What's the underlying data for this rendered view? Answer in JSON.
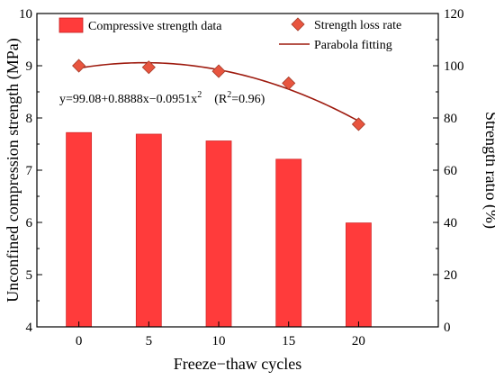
{
  "chart_data": {
    "type": "bar",
    "x": [
      0,
      5,
      10,
      15,
      20
    ],
    "xlabel": "Freeze−thaw cycles",
    "ylabel_left": "Unconfined compression strength (MPa)",
    "ylabel_right": "Strength ratio (%)",
    "ylim_left": [
      4,
      10
    ],
    "ylim_right": [
      0,
      120
    ],
    "x_ticks": [
      "0",
      "5",
      "10",
      "15",
      "20"
    ],
    "y_ticks_left": [
      "4",
      "5",
      "6",
      "7",
      "8",
      "9",
      "10"
    ],
    "y_ticks_right": [
      "0",
      "20",
      "40",
      "60",
      "80",
      "100",
      "120"
    ],
    "grid": false,
    "legend_position": "top",
    "series": [
      {
        "name": "Compressive strength data",
        "type": "bar",
        "axis": "left",
        "color": "#ff3b3b",
        "values": [
          7.72,
          7.69,
          7.56,
          7.21,
          5.99
        ]
      },
      {
        "name": "Strength loss rate",
        "type": "scatter",
        "axis": "right",
        "color": "#e8553f",
        "values": [
          100,
          99.4,
          97.9,
          93.3,
          77.6
        ]
      },
      {
        "name": "Parabola fitting",
        "type": "line",
        "axis": "right",
        "color": "#9e1b0f",
        "equation": {
          "a": 99.08,
          "b": 0.8888,
          "c": -0.0951
        }
      }
    ],
    "annotation": {
      "equation": "y=99.08+0.8888x−0.0951x",
      "exponent": "2",
      "r2_open": "(R",
      "r2_exp": "2",
      "r2_close": "=0.96)"
    }
  }
}
